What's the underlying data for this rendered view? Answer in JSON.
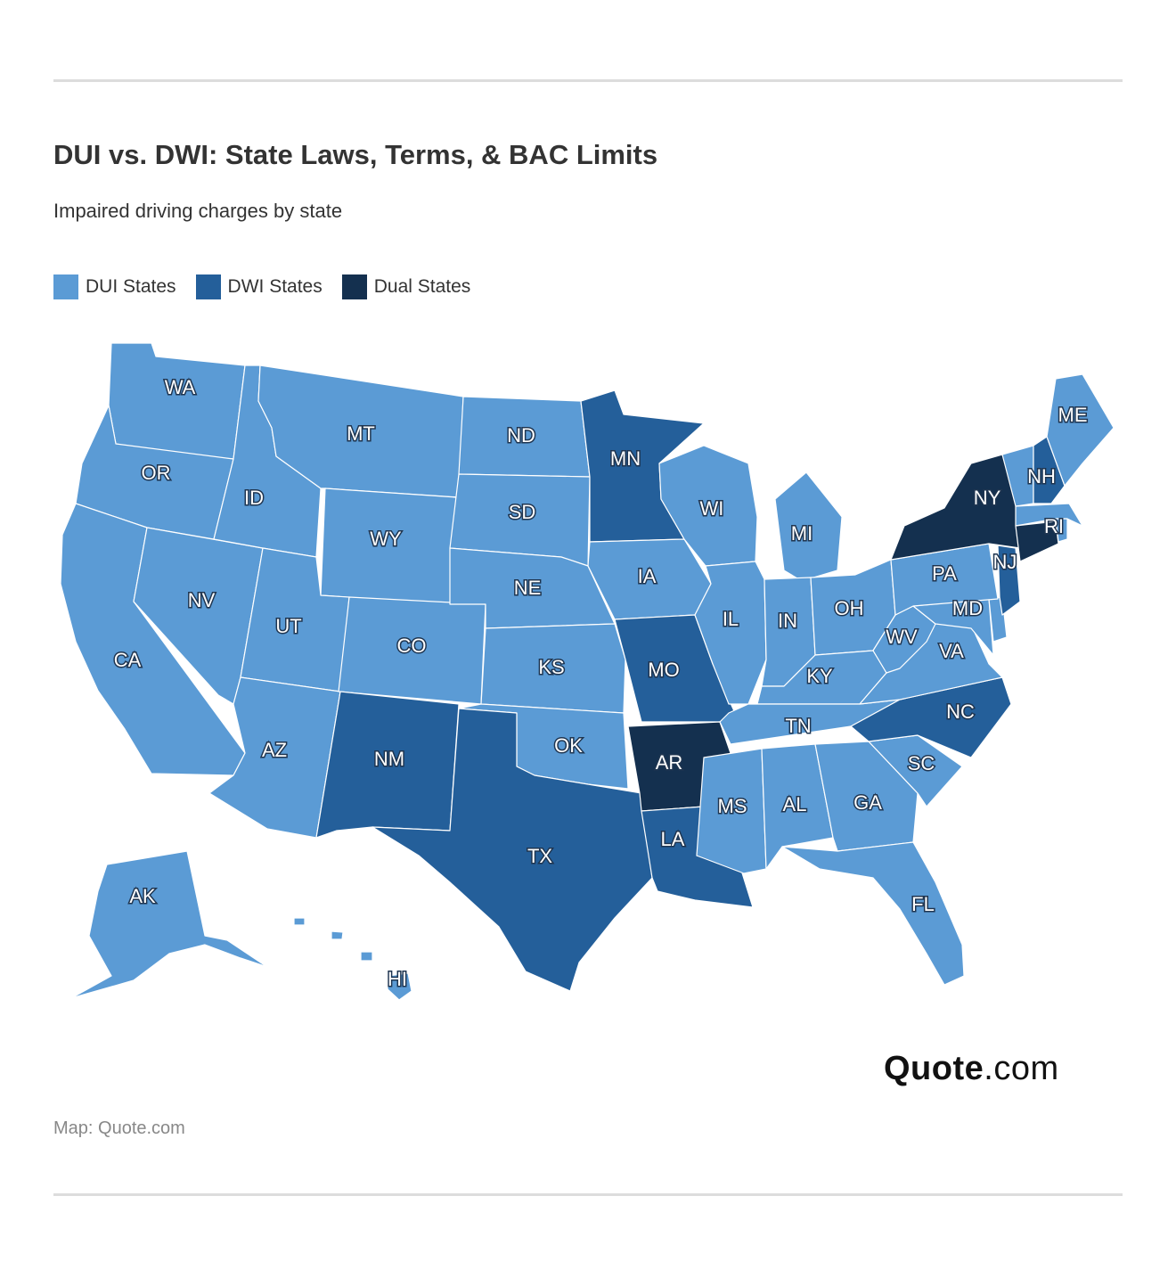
{
  "header": {
    "title": "DUI vs. DWI: State Laws, Terms, & BAC Limits",
    "subtitle": "Impaired driving charges by state"
  },
  "legend": [
    {
      "label": "DUI States",
      "color": "#5b9bd5"
    },
    {
      "label": "DWI States",
      "color": "#245f9a"
    },
    {
      "label": "Dual States",
      "color": "#14304f"
    }
  ],
  "map_data": {
    "type": "choropleth",
    "categories": {
      "dui": [
        "WA",
        "OR",
        "CA",
        "NV",
        "ID",
        "MT",
        "WY",
        "UT",
        "AZ",
        "CO",
        "ND",
        "SD",
        "NE",
        "KS",
        "OK",
        "IA",
        "WI",
        "MI",
        "IL",
        "IN",
        "OH",
        "KY",
        "TN",
        "MS",
        "AL",
        "GA",
        "FL",
        "SC",
        "WV",
        "VA",
        "MD",
        "PA",
        "ME",
        "VT",
        "MA",
        "RI",
        "DE",
        "AK",
        "HI"
      ],
      "dwi": [
        "MN",
        "MO",
        "NM",
        "TX",
        "LA",
        "NC",
        "NJ",
        "NH"
      ],
      "dual": [
        "NY",
        "AR",
        "CT"
      ]
    },
    "labels": [
      "WA",
      "OR",
      "CA",
      "NV",
      "ID",
      "MT",
      "WY",
      "UT",
      "AZ",
      "CO",
      "NM",
      "ND",
      "SD",
      "NE",
      "KS",
      "OK",
      "TX",
      "MN",
      "IA",
      "MO",
      "AR",
      "LA",
      "WI",
      "IL",
      "MI",
      "IN",
      "OH",
      "KY",
      "TN",
      "MS",
      "AL",
      "GA",
      "FL",
      "SC",
      "NC",
      "VA",
      "WV",
      "MD",
      "PA",
      "NY",
      "NJ",
      "ME",
      "NH",
      "RI",
      "AK",
      "HI"
    ]
  },
  "branding": {
    "logo_bold": "Quote",
    "logo_light": ".com"
  },
  "footer": {
    "source": "Map: Quote.com"
  }
}
